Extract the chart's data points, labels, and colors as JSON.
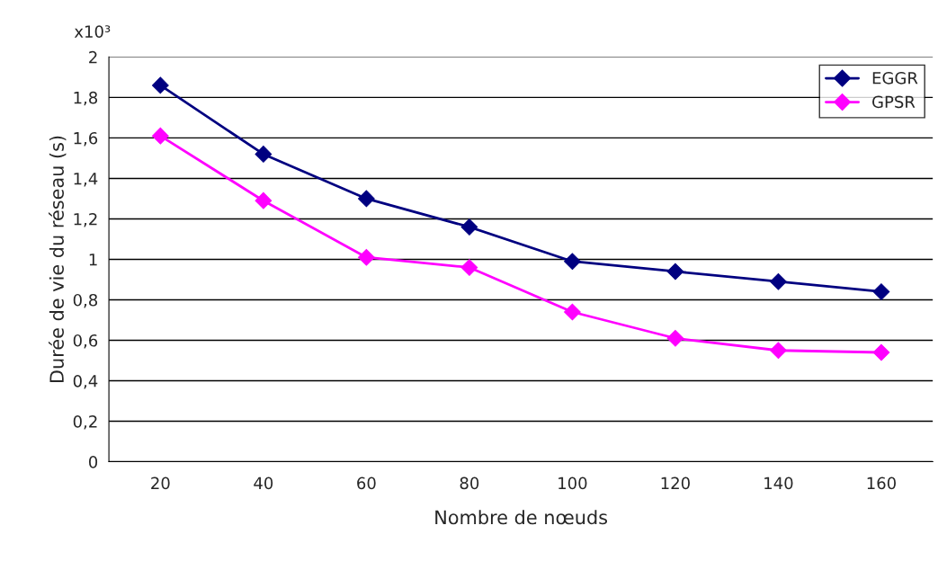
{
  "chart_data": {
    "type": "line",
    "xlabel": "Nombre de nœuds",
    "ylabel": "Durée de vie du réseau (s)",
    "annotations": [
      "x10³"
    ],
    "categories": [
      "20",
      "40",
      "60",
      "80",
      "100",
      "120",
      "140",
      "160"
    ],
    "series": [
      {
        "name": "EGGR",
        "color": "#000080",
        "values": [
          1.86,
          1.52,
          1.3,
          1.16,
          0.99,
          0.94,
          0.89,
          0.84
        ]
      },
      {
        "name": "GPSR",
        "color": "#ff00ff",
        "values": [
          1.61,
          1.29,
          1.01,
          0.96,
          0.74,
          0.61,
          0.55,
          0.54
        ]
      }
    ],
    "ylim": [
      0,
      2
    ],
    "yticks": [
      0,
      {
        "value": 0.2,
        "label": "0,2"
      },
      {
        "value": 0.4,
        "label": "0,4"
      },
      {
        "value": 0.6,
        "label": "0,6"
      },
      {
        "value": 0.8,
        "label": "0,8"
      },
      1,
      {
        "value": 1.2,
        "label": "1,2"
      },
      {
        "value": 1.4,
        "label": "1,4"
      },
      {
        "value": 1.6,
        "label": "1,6"
      },
      {
        "value": 1.8,
        "label": "1,8"
      },
      2
    ],
    "grid": "y",
    "legend": "top right",
    "marker": "diamond",
    "line_style": "solid"
  }
}
